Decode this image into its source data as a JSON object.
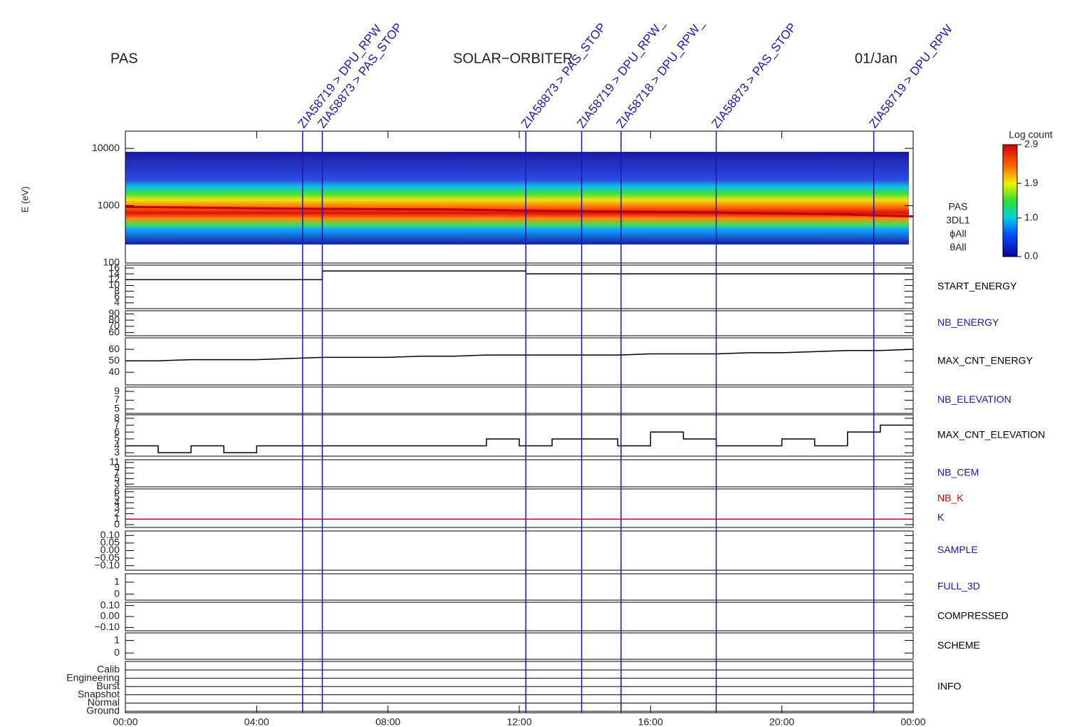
{
  "header": {
    "left": "PAS",
    "center": "SOLAR−ORBITER",
    "right": "01/Jan"
  },
  "xlim": [
    0,
    24
  ],
  "xticks": [
    {
      "value": 0,
      "label": "00:00"
    },
    {
      "value": 4,
      "label": "04:00"
    },
    {
      "value": 8,
      "label": "08:00"
    },
    {
      "value": 12,
      "label": "12:00"
    },
    {
      "value": 16,
      "label": "16:00"
    },
    {
      "value": 20,
      "label": "20:00"
    },
    {
      "value": 24,
      "label": "00:00"
    }
  ],
  "events": [
    {
      "x": 5.4,
      "label": "ZIA58719 > DPU_RPW"
    },
    {
      "x": 6.0,
      "label": "ZIA58873 > PAS_STOP"
    },
    {
      "x": 12.2,
      "label": "ZIA58873 > PAS_STOP"
    },
    {
      "x": 13.9,
      "label": "ZIA58719 > DPU_RPW_"
    },
    {
      "x": 15.1,
      "label": "ZIA58718 > DPU_RPW_"
    },
    {
      "x": 18.0,
      "label": "ZIA58873 > PAS_STOP"
    },
    {
      "x": 22.8,
      "label": "ZIA58719 > DPU_RPW"
    }
  ],
  "chart_data": [
    {
      "type": "spectrogram",
      "ylabel": "E (eV)",
      "log_y": true,
      "ylim": [
        100,
        20000
      ],
      "yticks": [
        100,
        1000,
        10000
      ],
      "x": [
        0,
        2,
        4,
        6,
        8,
        10,
        12,
        14,
        16,
        18,
        20,
        22,
        24
      ],
      "series": [
        {
          "name": "peak energy",
          "color": "#c00000",
          "values": [
            950,
            930,
            900,
            880,
            870,
            860,
            820,
            800,
            780,
            760,
            730,
            700,
            650
          ]
        }
      ],
      "labels": [
        "PAS",
        "3DL1",
        "ϕAll",
        "θAll"
      ],
      "colorbar": {
        "title": "Log count",
        "lim": [
          0,
          2.9
        ],
        "ticks": [
          {
            "value": 0,
            "label": "0.0"
          },
          {
            "value": 1,
            "label": "1.0"
          },
          1.9,
          2.9
        ]
      }
    },
    {
      "type": "line",
      "label": "START_ENERGY",
      "label_color": "#000000",
      "ylim": [
        2,
        17
      ],
      "yticks": [
        4,
        6,
        8,
        10,
        12,
        14,
        16
      ],
      "x": [
        0,
        6,
        6,
        12.2,
        12.2,
        24
      ],
      "series": [
        {
          "color": "#000000",
          "values": [
            12,
            12,
            15,
            15,
            14,
            14
          ]
        }
      ]
    },
    {
      "type": "line",
      "label": "NB_ENERGY",
      "label_color": "#1a1aa8",
      "ylim": [
        55,
        95
      ],
      "yticks": [
        60,
        70,
        80,
        90
      ],
      "x": [],
      "series": []
    },
    {
      "type": "line",
      "label": "MAX_CNT_ENERGY",
      "label_color": "#000000",
      "ylim": [
        29,
        70
      ],
      "yticks": [
        40,
        50,
        60
      ],
      "x": [
        0,
        1,
        2,
        3,
        4,
        5,
        6,
        7,
        8,
        9,
        10,
        11,
        12,
        13,
        14,
        15,
        16,
        17,
        18,
        19,
        20,
        21,
        22,
        23,
        24
      ],
      "series": [
        {
          "color": "#000000",
          "values": [
            50,
            50,
            51,
            51,
            51,
            52,
            53,
            53,
            53,
            54,
            54,
            55,
            55,
            55,
            55,
            55,
            56,
            56,
            56,
            57,
            57,
            58,
            59,
            59,
            60
          ]
        }
      ]
    },
    {
      "type": "line",
      "label": "NB_ELEVATION",
      "label_color": "#1a1aa8",
      "ylim": [
        4,
        10
      ],
      "yticks": [
        5,
        7,
        9
      ],
      "x": [],
      "series": []
    },
    {
      "type": "step",
      "label": "MAX_CNT_ELEVATION",
      "label_color": "#000000",
      "ylim": [
        2.5,
        8.5
      ],
      "yticks": [
        3,
        4,
        5,
        6,
        7,
        8
      ],
      "x": [
        0,
        1,
        2,
        3,
        4,
        5,
        6,
        7,
        8,
        9,
        10,
        11,
        12,
        13,
        14,
        15,
        16,
        17,
        18,
        19,
        20,
        21,
        22,
        23,
        24
      ],
      "series": [
        {
          "color": "#000000",
          "values": [
            4,
            3,
            4,
            3,
            4,
            4,
            4,
            4,
            4,
            4,
            4,
            5,
            4,
            5,
            5,
            4,
            6,
            5,
            4,
            4,
            5,
            4,
            6,
            7,
            7
          ]
        }
      ]
    },
    {
      "type": "line",
      "label": "NB_CEM",
      "label_color": "#1a1aa8",
      "ylim": [
        2,
        12
      ],
      "yticks": [
        3,
        5,
        7,
        9,
        11
      ],
      "x": [],
      "series": []
    },
    {
      "type": "line",
      "label": "NB_K",
      "label_color": "#d00000",
      "label2": "K",
      "label2_color": "#1a1aa8",
      "ylim": [
        -0.5,
        6.5
      ],
      "yticks": [
        0,
        1,
        2,
        3,
        4,
        5,
        6
      ],
      "x": [
        0,
        24
      ],
      "series": [
        {
          "color": "#b00030",
          "values": [
            1,
            1
          ]
        }
      ]
    },
    {
      "type": "line",
      "label": "SAMPLE",
      "label_color": "#1a1aa8",
      "ylim": [
        -0.13,
        0.13
      ],
      "yticks": [
        {
          "value": -0.1,
          "label": "−0.10"
        },
        {
          "value": -0.05,
          "label": "−0.05"
        },
        {
          "value": 0,
          "label": "0.00"
        },
        0.05,
        {
          "value": 0.1,
          "label": "0.10"
        }
      ],
      "x": [],
      "series": []
    },
    {
      "type": "line",
      "label": "FULL_3D",
      "label_color": "#1a1aa8",
      "ylim": [
        -0.5,
        1.7
      ],
      "yticks": [
        0,
        1
      ],
      "x": [],
      "series": []
    },
    {
      "type": "line",
      "label": "COMPRESSED",
      "label_color": "#000000",
      "ylim": [
        -0.13,
        0.13
      ],
      "yticks": [
        {
          "value": -0.1,
          "label": "−0.10"
        },
        {
          "value": 0,
          "label": "0.00"
        },
        {
          "value": 0.1,
          "label": "0.10"
        }
      ],
      "x": [],
      "series": []
    },
    {
      "type": "line",
      "label": "SCHEME",
      "label_color": "#000000",
      "ylim": [
        -0.5,
        1.6
      ],
      "yticks": [
        0,
        1
      ],
      "x": [],
      "series": []
    },
    {
      "type": "category",
      "label": "INFO",
      "label_color": "#000000",
      "categories": [
        "Calib",
        "Engineering",
        "Burst",
        "Snapshot",
        "Normal",
        "Ground"
      ]
    }
  ]
}
